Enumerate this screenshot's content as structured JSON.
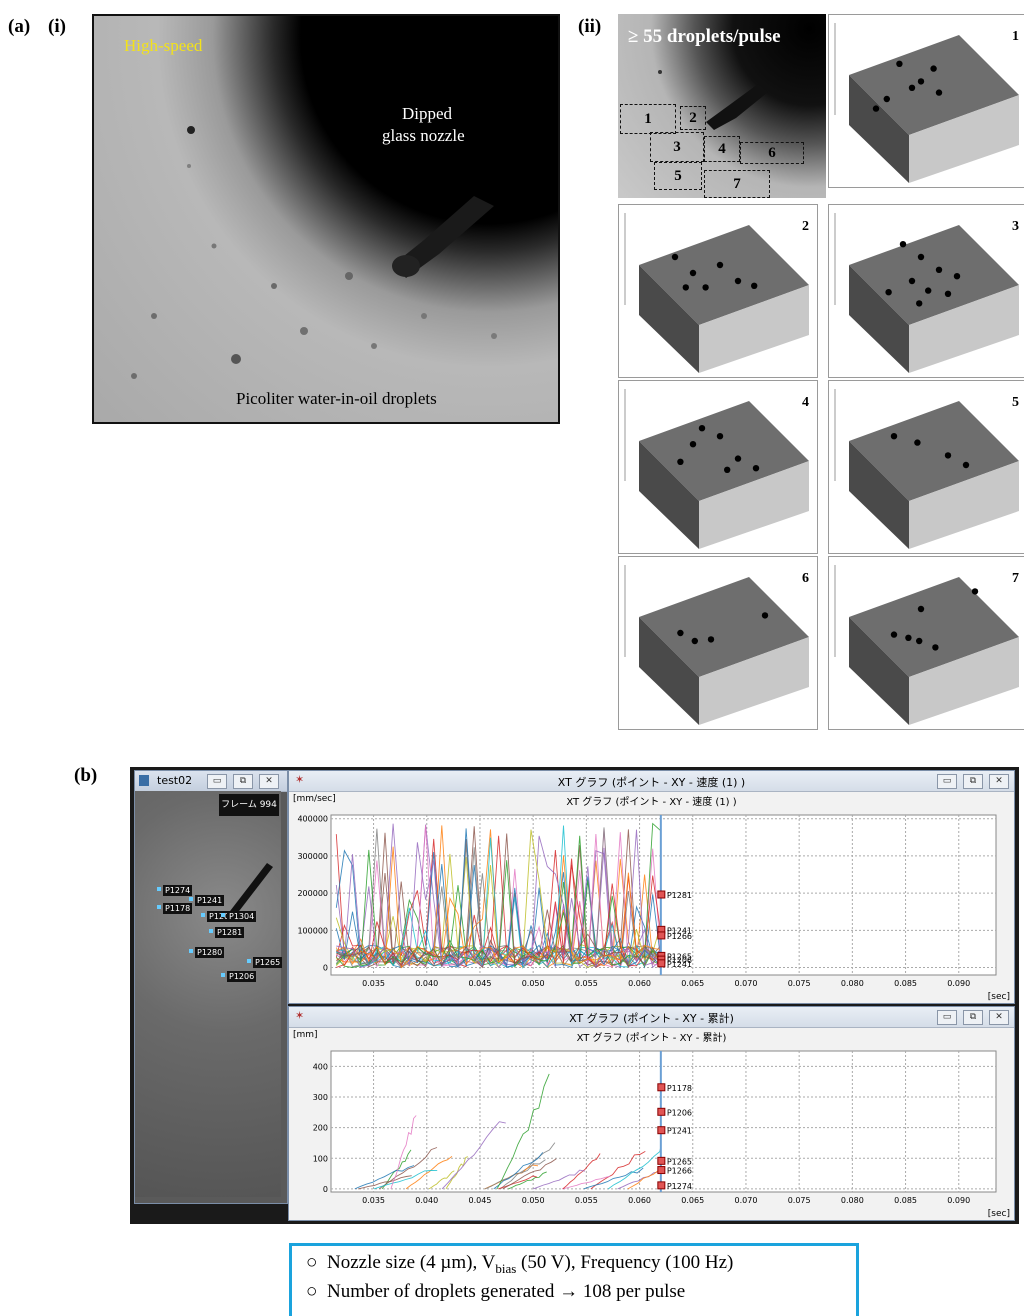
{
  "panel_a": {
    "label": "(a)",
    "sub_i": "(i)",
    "sub_ii": "(ii)",
    "highspeed": {
      "corner_text": "High-speed",
      "nozzle_label_line1": "Dipped",
      "nozzle_label_line2": "glass nozzle",
      "droplet_label": "Picoliter water-in-oil droplets",
      "corner_text_color": "#f3e21a"
    },
    "regions": {
      "headline": "≥ 55 droplets/pulse",
      "roi_labels": [
        "1",
        "2",
        "3",
        "4",
        "5",
        "6",
        "7"
      ],
      "tile_numbers": [
        "1",
        "2",
        "3",
        "4",
        "5",
        "6",
        "7"
      ]
    }
  },
  "panel_b": {
    "label": "(b)",
    "video_window": {
      "title": "test02",
      "frame_label": "フレーム 994",
      "point_tags": [
        "P1274",
        "P1241",
        "P1178",
        "P1206",
        "P1304",
        "P1281",
        "P1280",
        "P1265",
        "P1206"
      ]
    },
    "velocity_window": {
      "title": "XT グラフ (ポイント - XY - 速度 (1) )",
      "subtitle": "XT グラフ (ポイント - XY - 速度 (1) )",
      "y_unit": "[mm/sec]",
      "x_unit": "[sec]"
    },
    "cumulative_window": {
      "title": "XT グラフ (ポイント - XY - 累計)",
      "subtitle": "XT グラフ (ポイント - XY - 累計)",
      "y_unit": "[mm]",
      "x_unit": "[sec]"
    },
    "window_buttons": {
      "minimize": "▭",
      "restore": "⧉",
      "close": "✕"
    }
  },
  "chart_data": [
    {
      "type": "line",
      "title": "XT グラフ (ポイント - XY - 速度 (1) )",
      "xlabel": "[sec]",
      "ylabel": "[mm/sec]",
      "x_ticks": [
        "0.035",
        "0.040",
        "0.045",
        "0.050",
        "0.055",
        "0.060",
        "0.065",
        "0.070",
        "0.075",
        "0.080",
        "0.085",
        "0.090"
      ],
      "y_ticks": [
        "0",
        "100000",
        "200000",
        "300000",
        "400000"
      ],
      "xlim": [
        0.031,
        0.0935
      ],
      "ylim": [
        -20000,
        410000
      ],
      "cursor_x": 0.062,
      "grid": true,
      "end_labels": [
        {
          "name": "P1281",
          "value": 195000
        },
        {
          "name": "P1241",
          "value": 100000
        },
        {
          "name": "P1266",
          "value": 85000
        },
        {
          "name": "P1265",
          "value": 30000
        },
        {
          "name": "P1206",
          "value": 20000
        },
        {
          "name": "P1241",
          "value": 10000
        }
      ]
    },
    {
      "type": "line",
      "title": "XT グラフ (ポイント - XY - 累計)",
      "xlabel": "[sec]",
      "ylabel": "[mm]",
      "x_ticks": [
        "0.035",
        "0.040",
        "0.045",
        "0.050",
        "0.055",
        "0.060",
        "0.065",
        "0.070",
        "0.075",
        "0.080",
        "0.085",
        "0.090"
      ],
      "y_ticks": [
        "0",
        "100",
        "200",
        "300",
        "400"
      ],
      "xlim": [
        0.031,
        0.0935
      ],
      "ylim": [
        -10,
        450
      ],
      "cursor_x": 0.062,
      "grid": true,
      "end_labels": [
        {
          "name": "P1178",
          "value": 330
        },
        {
          "name": "P1206",
          "value": 250
        },
        {
          "name": "P1241",
          "value": 190
        },
        {
          "name": "P1265",
          "value": 90
        },
        {
          "name": "P1266",
          "value": 60
        },
        {
          "name": "P1274",
          "value": 10
        }
      ]
    }
  ],
  "settings_box": {
    "line1_prefix": "Nozzle size (4 µm), V",
    "line1_sub": "bias",
    "line1_suffix": " (50 V), Frequency (100 Hz)",
    "line2": "Number of droplets generated → 108 per pulse",
    "bullet": "○"
  }
}
